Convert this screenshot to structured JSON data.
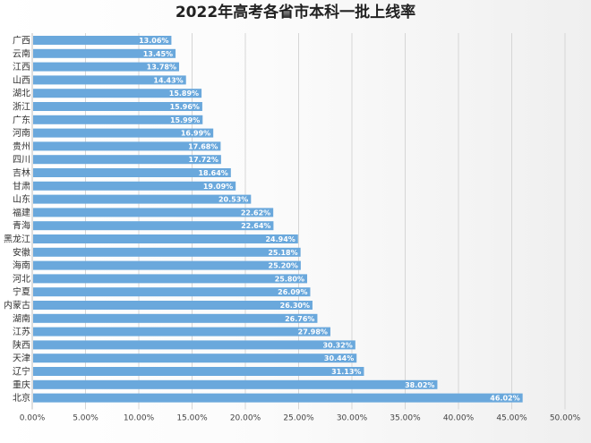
{
  "chart_data": {
    "type": "bar",
    "orientation": "horizontal",
    "title": "2022年高考各省市本科一批上线率",
    "categories": [
      "广西",
      "云南",
      "江西",
      "山西",
      "湖北",
      "浙江",
      "广东",
      "河南",
      "贵州",
      "四川",
      "吉林",
      "甘肃",
      "山东",
      "福建",
      "青海",
      "黑龙江",
      "安徽",
      "海南",
      "河北",
      "宁夏",
      "内蒙古",
      "湖南",
      "江苏",
      "陕西",
      "天津",
      "辽宁",
      "重庆",
      "北京"
    ],
    "values": [
      13.06,
      13.45,
      13.78,
      14.43,
      15.89,
      15.96,
      15.99,
      16.99,
      17.68,
      17.72,
      18.64,
      19.09,
      20.53,
      22.62,
      22.64,
      24.94,
      25.18,
      25.2,
      25.8,
      26.09,
      26.3,
      26.76,
      27.98,
      30.32,
      30.44,
      31.13,
      38.02,
      46.02
    ],
    "value_labels": [
      "13.06%",
      "13.45%",
      "13.78%",
      "14.43%",
      "15.89%",
      "15.96%",
      "15.99%",
      "16.99%",
      "17.68%",
      "17.72%",
      "18.64%",
      "19.09%",
      "20.53%",
      "22.62%",
      "22.64%",
      "24.94%",
      "25.18%",
      "25.20%",
      "25.80%",
      "26.09%",
      "26.30%",
      "26.76%",
      "27.98%",
      "30.32%",
      "30.44%",
      "31.13%",
      "38.02%",
      "46.02%"
    ],
    "xlim": [
      0,
      50
    ],
    "x_ticks": [
      "0.00%",
      "5.00%",
      "10.00%",
      "15.00%",
      "20.00%",
      "25.00%",
      "30.00%",
      "35.00%",
      "40.00%",
      "45.00%",
      "50.00%"
    ],
    "grid": true,
    "bar_color": "#6aa8dc"
  }
}
